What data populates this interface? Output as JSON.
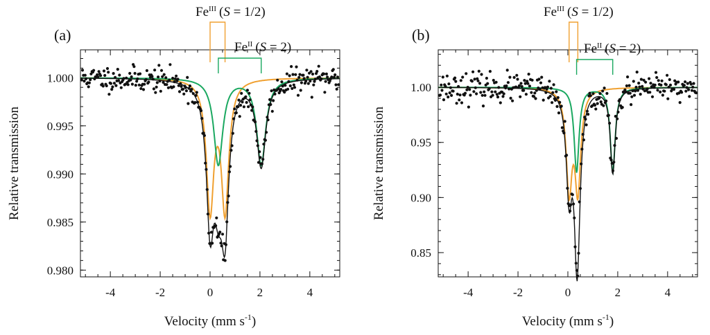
{
  "colors": {
    "fit": "#111111",
    "fe3": "#f0a030",
    "fe2": "#1aa860",
    "points": "#111111"
  },
  "chart_data": [
    {
      "type": "scatter",
      "panel_label": "(a)",
      "xlabel": "Velocity (mm s",
      "xlabel_sup": "-1",
      "xlabel_close": ")",
      "ylabel": "Relative transmission",
      "xlim": [
        -5.2,
        5.2
      ],
      "ylim": [
        0.9793,
        1.0029
      ],
      "xticks": [
        -4,
        -2,
        0,
        2,
        4
      ],
      "yticks": [
        0.98,
        0.985,
        0.99,
        0.995,
        1.0
      ],
      "ytick_labels": [
        "0.980",
        "0.985",
        "0.990",
        "0.995",
        "1.000"
      ],
      "noise": 0.00065,
      "seed": 11,
      "fe3": {
        "label_main": "Fe",
        "label_sup": "III",
        "label_paren": "(",
        "label_S": "S",
        "label_rest": " = 1/2)",
        "isomer_shift": 0.3,
        "quadrupole_splitting": 0.6,
        "lines": [
          {
            "x": 0.0,
            "depth": 0.0135
          },
          {
            "x": 0.6,
            "depth": 0.0135
          }
        ],
        "hwhm": 0.18
      },
      "fe2": {
        "label_main": "Fe",
        "label_sup": "II",
        "label_paren": "(",
        "label_S": "S",
        "label_rest": " = 2)",
        "isomer_shift": 1.2,
        "quadrupole_splitting": 1.7,
        "lines": [
          {
            "x": 0.33,
            "depth": 0.009
          },
          {
            "x": 2.05,
            "depth": 0.009
          }
        ],
        "hwhm": 0.22
      }
    },
    {
      "type": "scatter",
      "panel_label": "(b)",
      "xlabel": "Velocity (mm s",
      "xlabel_sup": "-1",
      "xlabel_close": ")",
      "ylabel": "Relative transmission",
      "xlim": [
        -5.2,
        5.2
      ],
      "ylim": [
        0.828,
        1.034
      ],
      "xticks": [
        -4,
        -2,
        0,
        2,
        4
      ],
      "yticks": [
        0.85,
        0.9,
        0.95,
        1.0
      ],
      "ytick_labels": [
        "0.85",
        "0.90",
        "0.95",
        "1.00"
      ],
      "noise": 0.0065,
      "seed": 23,
      "fe3": {
        "label_main": "Fe",
        "label_sup": "III",
        "label_paren": "(",
        "label_S": "S",
        "label_rest": " = 1/2)",
        "isomer_shift": 0.22,
        "quadrupole_splitting": 0.35,
        "lines": [
          {
            "x": 0.05,
            "depth": 0.09
          },
          {
            "x": 0.4,
            "depth": 0.09
          }
        ],
        "hwhm": 0.14
      },
      "fe2": {
        "label_main": "Fe",
        "label_sup": "II",
        "label_paren": "(",
        "label_S": "S",
        "label_rest": " = 2)",
        "isomer_shift": 1.1,
        "quadrupole_splitting": 1.45,
        "lines": [
          {
            "x": 0.35,
            "depth": 0.077
          },
          {
            "x": 1.8,
            "depth": 0.077
          }
        ],
        "hwhm": 0.12
      }
    }
  ]
}
